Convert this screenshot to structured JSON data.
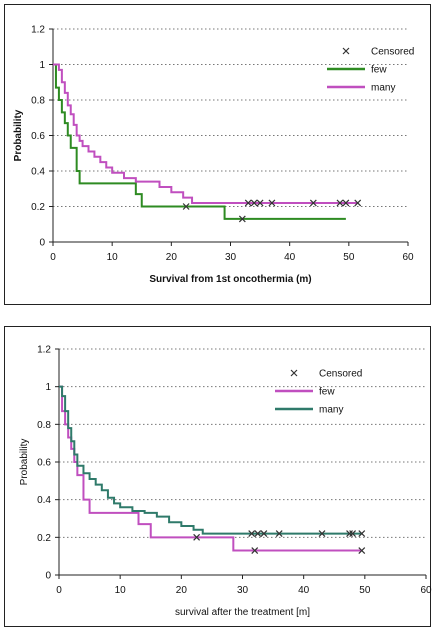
{
  "chart_data": [
    {
      "type": "line",
      "title": "",
      "xlabel": "Survival from 1st oncothermia (m)",
      "ylabel": "Probability",
      "xlim": [
        0,
        60
      ],
      "ylim": [
        0,
        1.2
      ],
      "xticks": [
        "0",
        "10",
        "20",
        "30",
        "40",
        "50",
        "60"
      ],
      "yticks": [
        "0",
        "0.2",
        "0.4",
        "0.6",
        "0.8",
        "1",
        "1.2"
      ],
      "grid": "horizontal-dotted",
      "legend_position": "top-right",
      "legend": [
        {
          "label": "Censored",
          "kind": "marker"
        },
        {
          "label": "few",
          "kind": "line",
          "color": "#2e8b22"
        },
        {
          "label": "many",
          "kind": "line",
          "color": "#c04fbf"
        }
      ],
      "series": [
        {
          "name": "few",
          "color": "#2e8b22",
          "x": [
            0,
            0.5,
            1,
            1.5,
            2,
            2.5,
            3,
            4,
            4.5,
            14,
            15,
            29,
            49.5
          ],
          "y": [
            1,
            0.87,
            0.8,
            0.73,
            0.67,
            0.6,
            0.53,
            0.4,
            0.33,
            0.27,
            0.2,
            0.13,
            0.13
          ],
          "censored_x": [
            22.5,
            32
          ],
          "censored_y": [
            0.2,
            0.13
          ]
        },
        {
          "name": "many",
          "color": "#c04fbf",
          "x": [
            0,
            1,
            1.5,
            2,
            2.5,
            3,
            3.5,
            4,
            4.5,
            5,
            6,
            7,
            8,
            9,
            10,
            12,
            14,
            18,
            20,
            22,
            23.5,
            51.5
          ],
          "y": [
            1,
            0.97,
            0.9,
            0.84,
            0.77,
            0.72,
            0.66,
            0.6,
            0.57,
            0.54,
            0.51,
            0.48,
            0.45,
            0.42,
            0.39,
            0.36,
            0.34,
            0.31,
            0.28,
            0.25,
            0.22,
            0.22
          ],
          "censored_x": [
            33,
            34,
            35,
            37,
            44,
            48.5,
            49.5,
            51.5
          ],
          "censored_y": [
            0.22,
            0.22,
            0.22,
            0.22,
            0.22,
            0.22,
            0.22,
            0.22
          ]
        }
      ]
    },
    {
      "type": "line",
      "title": "",
      "xlabel": "survival after the treatment [m]",
      "ylabel": "Probability",
      "xlim": [
        0,
        60
      ],
      "ylim": [
        0,
        1.2
      ],
      "xticks": [
        "0",
        "10",
        "20",
        "30",
        "40",
        "50",
        "60"
      ],
      "yticks": [
        "0",
        "0.2",
        "0.4",
        "0.6",
        "0.8",
        "1",
        "1.2"
      ],
      "grid": "horizontal-dotted",
      "legend_position": "top-right",
      "legend": [
        {
          "label": "Censored",
          "kind": "marker"
        },
        {
          "label": "few",
          "kind": "line",
          "color": "#c04fbf"
        },
        {
          "label": "many",
          "kind": "line",
          "color": "#2f7a6a"
        }
      ],
      "series": [
        {
          "name": "few",
          "color": "#c04fbf",
          "x": [
            0,
            0.5,
            1,
            1.5,
            2,
            2.5,
            3,
            4,
            5,
            13,
            15,
            28.5,
            49.5
          ],
          "y": [
            1,
            0.87,
            0.8,
            0.73,
            0.67,
            0.6,
            0.53,
            0.4,
            0.33,
            0.27,
            0.2,
            0.13,
            0.13
          ],
          "censored_x": [
            22.5,
            32,
            49.5
          ],
          "censored_y": [
            0.2,
            0.13,
            0.13
          ]
        },
        {
          "name": "many",
          "color": "#2f7a6a",
          "x": [
            0,
            0.5,
            1,
            1.5,
            2,
            2.5,
            3,
            4,
            5,
            6,
            7,
            8,
            9,
            10,
            12,
            14,
            16,
            18,
            20,
            22,
            23.5,
            49.5
          ],
          "y": [
            1,
            0.95,
            0.87,
            0.78,
            0.71,
            0.64,
            0.58,
            0.54,
            0.51,
            0.48,
            0.45,
            0.41,
            0.38,
            0.36,
            0.34,
            0.33,
            0.31,
            0.28,
            0.26,
            0.24,
            0.22,
            0.22
          ],
          "censored_x": [
            31.5,
            32.5,
            33.5,
            36,
            43,
            47.5,
            48,
            49.5
          ],
          "censored_y": [
            0.22,
            0.22,
            0.22,
            0.22,
            0.22,
            0.22,
            0.22,
            0.22
          ]
        }
      ]
    }
  ]
}
